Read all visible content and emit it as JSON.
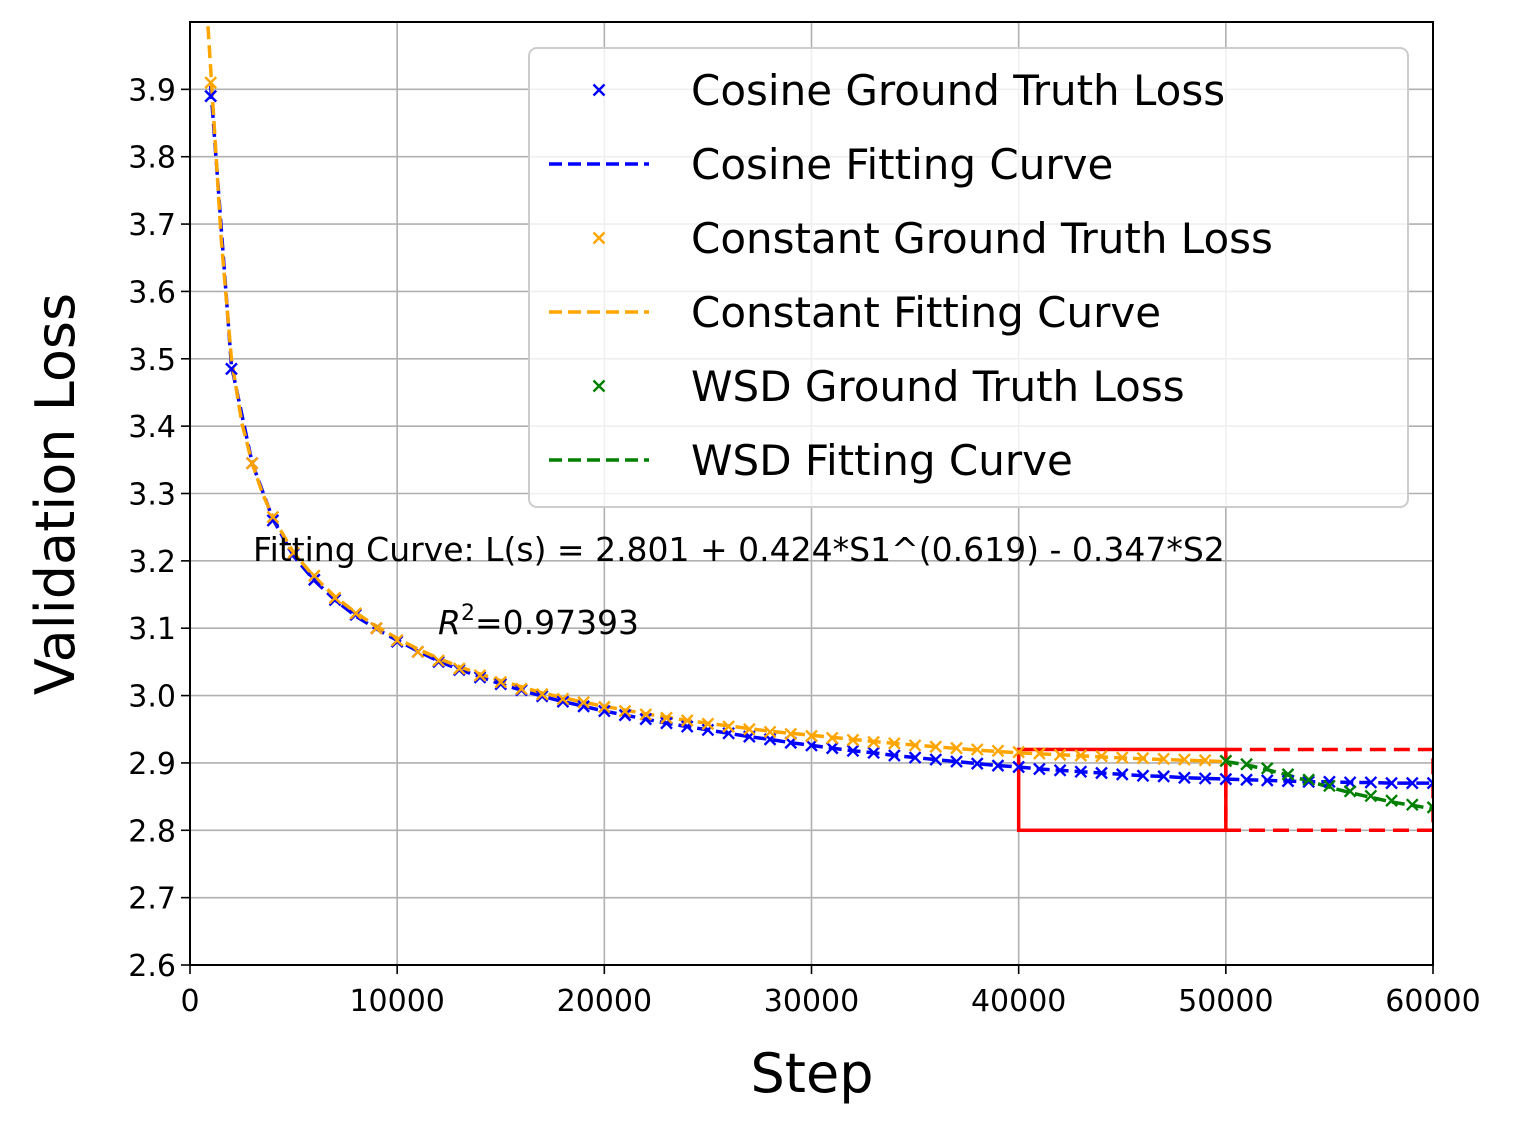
{
  "chart_data": {
    "type": "line",
    "xlabel": "Step",
    "ylabel": "Validation Loss",
    "xlim": [
      0,
      60000
    ],
    "ylim": [
      2.6,
      4.0
    ],
    "xticks": [
      "0",
      "10000",
      "20000",
      "30000",
      "40000",
      "50000",
      "60000"
    ],
    "yticks": [
      "2.6",
      "2.7",
      "2.8",
      "2.9",
      "3.0",
      "3.1",
      "3.2",
      "3.3",
      "3.4",
      "3.5",
      "3.6",
      "3.7",
      "3.8",
      "3.9"
    ],
    "grid": true,
    "legend_position": "top-right",
    "annotations": {
      "formula": "Fitting Curve: L(s) = 2.801 + 0.424*S1^(0.619) - 0.347*S2",
      "r2_symbol": "R",
      "r2_exponent": "2",
      "r2_value": "=0.97393"
    },
    "series": [
      {
        "name": "Cosine Ground Truth Loss",
        "kind": "markers",
        "color": "#0000ff",
        "x": [
          1000,
          2000,
          3000,
          4000,
          5000,
          6000,
          7000,
          8000,
          9000,
          10000,
          11000,
          12000,
          13000,
          14000,
          15000,
          16000,
          17000,
          18000,
          19000,
          20000,
          21000,
          22000,
          23000,
          24000,
          25000,
          26000,
          27000,
          28000,
          29000,
          30000,
          31000,
          32000,
          33000,
          34000,
          35000,
          36000,
          37000,
          38000,
          39000,
          40000,
          41000,
          42000,
          43000,
          44000,
          45000,
          46000,
          47000,
          48000,
          49000,
          50000,
          51000,
          52000,
          53000,
          54000,
          55000,
          56000,
          57000,
          58000,
          59000,
          60000
        ],
        "y": [
          3.89,
          3.485,
          3.345,
          3.26,
          3.21,
          3.172,
          3.142,
          3.12,
          3.1,
          3.08,
          3.065,
          3.05,
          3.038,
          3.027,
          3.017,
          3.008,
          2.999,
          2.991,
          2.984,
          2.977,
          2.971,
          2.965,
          2.959,
          2.954,
          2.949,
          2.944,
          2.939,
          2.935,
          2.93,
          2.926,
          2.922,
          2.918,
          2.915,
          2.911,
          2.908,
          2.905,
          2.902,
          2.899,
          2.896,
          2.894,
          2.891,
          2.889,
          2.887,
          2.885,
          2.883,
          2.881,
          2.88,
          2.878,
          2.877,
          2.876,
          2.875,
          2.874,
          2.873,
          2.872,
          2.872,
          2.871,
          2.871,
          2.87,
          2.87,
          2.87
        ]
      },
      {
        "name": "Cosine Fitting Curve",
        "kind": "dashed",
        "color": "#0000ff",
        "x": [
          1000,
          2000,
          3000,
          4000,
          5000,
          6000,
          7000,
          8000,
          9000,
          10000,
          11000,
          12000,
          13000,
          14000,
          15000,
          16000,
          17000,
          18000,
          19000,
          20000,
          21000,
          22000,
          23000,
          24000,
          25000,
          26000,
          27000,
          28000,
          29000,
          30000,
          31000,
          32000,
          33000,
          34000,
          35000,
          36000,
          37000,
          38000,
          39000,
          40000,
          41000,
          42000,
          43000,
          44000,
          45000,
          46000,
          47000,
          48000,
          49000,
          50000,
          51000,
          52000,
          53000,
          54000,
          55000,
          56000,
          57000,
          58000,
          59000,
          60000
        ],
        "y": [
          3.905,
          3.49,
          3.345,
          3.262,
          3.207,
          3.171,
          3.142,
          3.118,
          3.099,
          3.082,
          3.066,
          3.051,
          3.039,
          3.028,
          3.017,
          3.008,
          2.999,
          2.991,
          2.984,
          2.977,
          2.971,
          2.965,
          2.959,
          2.954,
          2.949,
          2.944,
          2.939,
          2.935,
          2.93,
          2.926,
          2.922,
          2.918,
          2.915,
          2.911,
          2.908,
          2.905,
          2.902,
          2.899,
          2.896,
          2.894,
          2.891,
          2.889,
          2.887,
          2.885,
          2.883,
          2.881,
          2.88,
          2.878,
          2.877,
          2.876,
          2.875,
          2.874,
          2.873,
          2.872,
          2.872,
          2.871,
          2.871,
          2.87,
          2.87,
          2.87
        ]
      },
      {
        "name": "Constant Ground Truth Loss",
        "kind": "markers",
        "color": "#ffa500",
        "x": [
          1000,
          3000,
          4000,
          5000,
          6000,
          7000,
          8000,
          9000,
          10000,
          11000,
          12000,
          13000,
          14000,
          15000,
          16000,
          17000,
          18000,
          19000,
          20000,
          21000,
          22000,
          23000,
          24000,
          25000,
          26000,
          27000,
          28000,
          29000,
          30000,
          31000,
          32000,
          33000,
          34000,
          35000,
          36000,
          37000,
          38000,
          39000,
          40000,
          41000,
          42000,
          43000,
          44000,
          45000,
          46000,
          47000,
          48000,
          49000,
          50000
        ],
        "y": [
          3.91,
          3.345,
          3.265,
          3.212,
          3.178,
          3.145,
          3.122,
          3.1,
          3.082,
          3.065,
          3.052,
          3.04,
          3.03,
          3.02,
          3.01,
          3.002,
          2.995,
          2.99,
          2.983,
          2.977,
          2.972,
          2.967,
          2.963,
          2.958,
          2.954,
          2.95,
          2.946,
          2.943,
          2.94,
          2.937,
          2.934,
          2.931,
          2.929,
          2.926,
          2.924,
          2.922,
          2.92,
          2.918,
          2.916,
          2.914,
          2.912,
          2.911,
          2.91,
          2.908,
          2.907,
          2.906,
          2.905,
          2.904,
          2.903
        ]
      },
      {
        "name": "Constant Fitting Curve",
        "kind": "dashed",
        "color": "#ffa500",
        "x": [
          750,
          1000,
          1500,
          2000,
          2500,
          3000,
          3500,
          4000,
          5000,
          6000,
          7000,
          8000,
          9000,
          10000,
          11000,
          12000,
          13000,
          14000,
          15000,
          16000,
          17000,
          18000,
          19000,
          20000,
          22000,
          24000,
          26000,
          28000,
          30000,
          32000,
          34000,
          36000,
          38000,
          40000,
          42000,
          44000,
          46000,
          48000,
          50000
        ],
        "y": [
          4.05,
          3.93,
          3.68,
          3.5,
          3.405,
          3.345,
          3.3,
          3.265,
          3.212,
          3.176,
          3.147,
          3.123,
          3.103,
          3.085,
          3.069,
          3.055,
          3.043,
          3.032,
          3.022,
          3.013,
          3.004,
          2.997,
          2.99,
          2.984,
          2.973,
          2.963,
          2.955,
          2.947,
          2.941,
          2.935,
          2.929,
          2.924,
          2.919,
          2.915,
          2.912,
          2.909,
          2.906,
          2.904,
          2.902
        ]
      },
      {
        "name": "WSD Ground Truth Loss",
        "kind": "markers",
        "color": "#008000",
        "x": [
          50000,
          51000,
          52000,
          53000,
          54000,
          55000,
          56000,
          57000,
          58000,
          59000,
          60000
        ],
        "y": [
          2.903,
          2.898,
          2.892,
          2.883,
          2.875,
          2.866,
          2.858,
          2.851,
          2.844,
          2.838,
          2.834
        ]
      },
      {
        "name": "WSD Fitting Curve",
        "kind": "dashed",
        "color": "#008000",
        "x": [
          50000,
          51000,
          52000,
          53000,
          54000,
          55000,
          56000,
          57000,
          58000,
          59000,
          60000
        ],
        "y": [
          2.902,
          2.897,
          2.89,
          2.882,
          2.873,
          2.864,
          2.856,
          2.849,
          2.842,
          2.837,
          2.832
        ]
      }
    ],
    "highlight_boxes": [
      {
        "style": "solid",
        "color": "#ff0000",
        "x": [
          40000,
          50000
        ],
        "y": [
          2.8,
          2.92
        ]
      },
      {
        "style": "dashed",
        "color": "#ff0000",
        "x": [
          50000,
          60000
        ],
        "y": [
          2.8,
          2.92
        ]
      }
    ]
  }
}
